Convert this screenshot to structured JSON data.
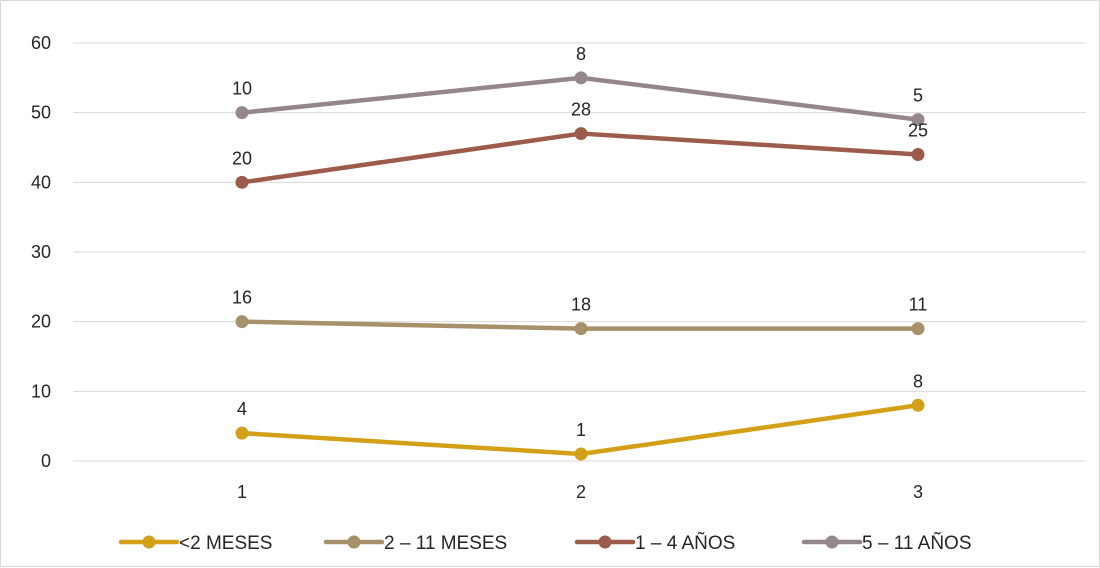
{
  "chart_data": {
    "type": "line",
    "categories": [
      "1",
      "2",
      "3"
    ],
    "ylim": [
      0,
      60
    ],
    "yticks": [
      "0",
      "10",
      "20",
      "30",
      "40",
      "50",
      "60"
    ],
    "grid": true,
    "legend_position": "bottom",
    "series": [
      {
        "name": "<2 MESES",
        "color": "#d4a017",
        "values": [
          4,
          1,
          8
        ],
        "labels": [
          "4",
          "1",
          "8"
        ]
      },
      {
        "name": "2 – 11 MESES",
        "color": "#a6916a",
        "values": [
          20,
          19,
          19
        ],
        "labels": [
          "16",
          "18",
          "11"
        ]
      },
      {
        "name": "1 – 4 AÑOS",
        "color": "#9c5b4b",
        "values": [
          40,
          47,
          44
        ],
        "labels": [
          "20",
          "28",
          "25"
        ]
      },
      {
        "name": "5 – 11 AÑOS",
        "color": "#958789",
        "values": [
          50,
          55,
          49
        ],
        "labels": [
          "10",
          "8",
          "5"
        ]
      }
    ]
  }
}
